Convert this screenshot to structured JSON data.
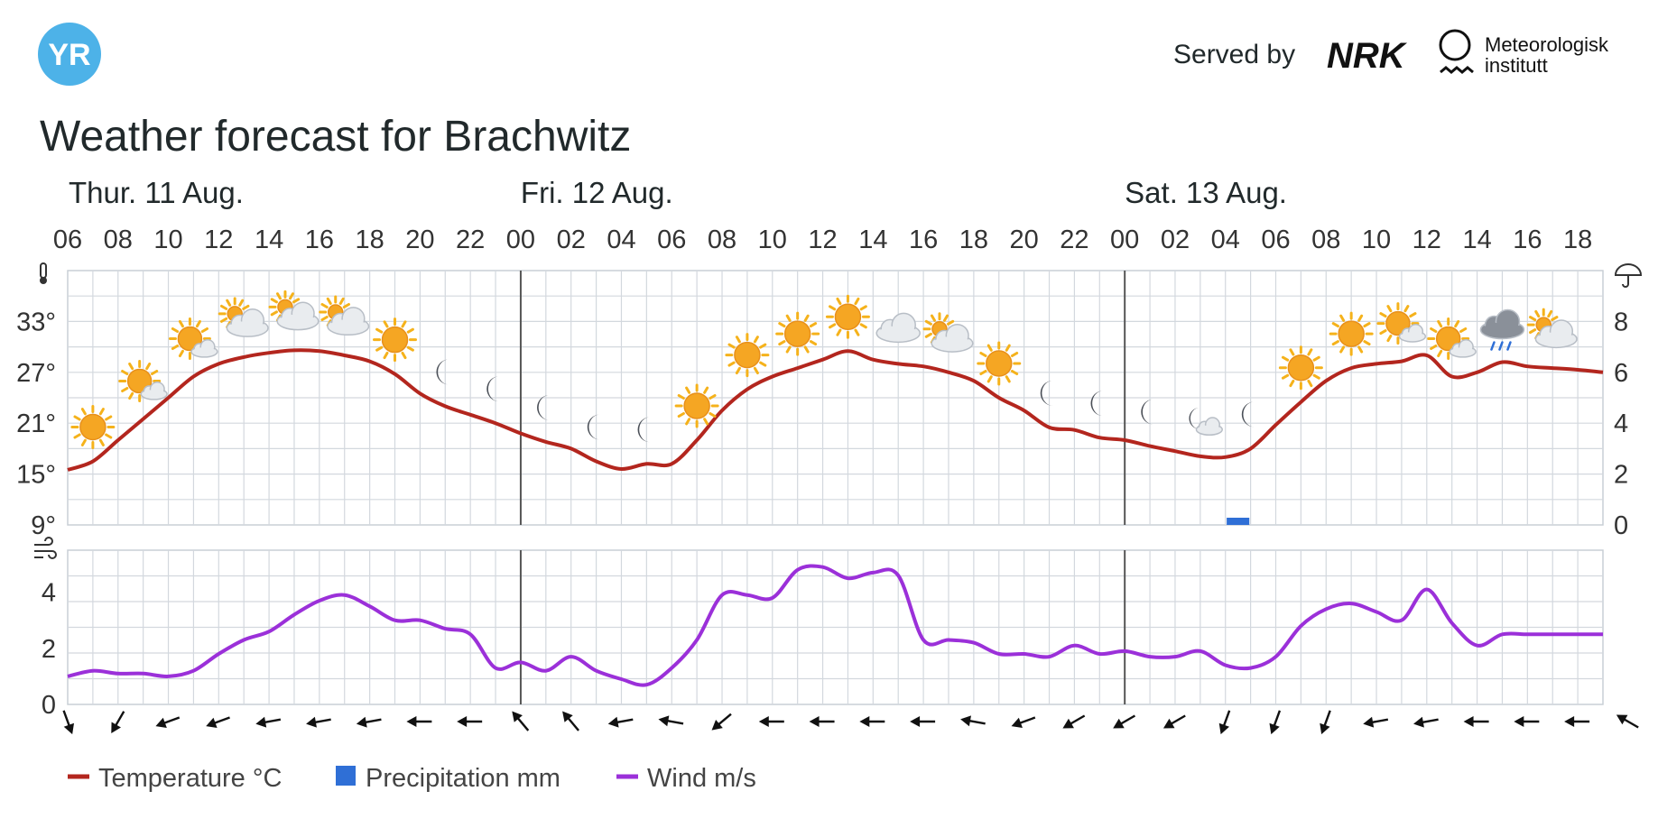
{
  "header": {
    "logo_text": "YR",
    "served_by": "Served by",
    "nrk_logo_text": "NRK",
    "met_logo_line1": "Meteorologisk",
    "met_logo_line2": "institutt"
  },
  "title": "Weather forecast for Brachwitz",
  "days": [
    {
      "label": "Thur. 11 Aug.",
      "start_hour": 0
    },
    {
      "label": "Fri. 12 Aug.",
      "start_hour": 18
    },
    {
      "label": "Sat. 13 Aug.",
      "start_hour": 42
    }
  ],
  "hour_labels": [
    "06",
    "08",
    "10",
    "12",
    "14",
    "16",
    "18",
    "20",
    "22",
    "00",
    "02",
    "04",
    "06",
    "08",
    "10",
    "12",
    "14",
    "16",
    "18",
    "20",
    "22",
    "00",
    "02",
    "04",
    "06",
    "08",
    "10",
    "12",
    "14",
    "16",
    "18"
  ],
  "legend": [
    {
      "key": "temperature",
      "label": "Temperature °C",
      "color": "#b3261e"
    },
    {
      "key": "precipitation",
      "label": "Precipitation mm",
      "color": "#2f6fd6"
    },
    {
      "key": "wind",
      "label": "Wind m/s",
      "color": "#9b30d9"
    }
  ],
  "chart_data": {
    "type": "line",
    "x_unit": "hours from Thu 11 Aug 06:00",
    "temperature_axis": {
      "ticks": [
        "9°",
        "15°",
        "21°",
        "27°",
        "33°"
      ],
      "range": [
        9,
        39
      ]
    },
    "precipitation_axis": {
      "ticks": [
        "0",
        "2",
        "4",
        "6",
        "8"
      ],
      "range": [
        0,
        10
      ]
    },
    "wind_axis": {
      "ticks": [
        "0",
        "2",
        "4"
      ],
      "range": [
        0,
        5.5
      ]
    },
    "temperature": {
      "x": [
        0,
        1,
        2,
        3,
        4,
        5,
        6,
        7,
        8,
        9,
        10,
        11,
        12,
        13,
        14,
        15,
        16,
        17,
        18,
        19,
        20,
        21,
        22,
        23,
        24,
        25,
        26,
        27,
        28,
        29,
        30,
        31,
        32,
        33,
        34,
        35,
        36,
        37,
        38,
        39,
        40,
        41,
        42,
        43,
        44,
        45,
        46,
        47,
        48,
        49,
        50,
        51,
        52,
        53,
        54,
        55,
        56,
        57,
        58,
        59,
        60,
        61
      ],
      "y": [
        15.5,
        16.5,
        19,
        21.5,
        24,
        26.5,
        28,
        28.8,
        29.3,
        29.6,
        29.5,
        29,
        28.3,
        26.8,
        24.5,
        23,
        22,
        21,
        19.8,
        18.8,
        18,
        16.5,
        15.6,
        16.2,
        16.2,
        19,
        22.5,
        25,
        26.5,
        27.5,
        28.5,
        29.5,
        28.5,
        28,
        27.7,
        27,
        26,
        24,
        22.5,
        20.5,
        20.2,
        19.3,
        19,
        18.3,
        17.7,
        17.1,
        17,
        18,
        20.8,
        23.5,
        26,
        27.5,
        28,
        28.3,
        29,
        26.5,
        27,
        28.2,
        27.7,
        27.5,
        27.3,
        27
      ]
    },
    "precipitation": {
      "x": [
        46.5
      ],
      "y": [
        0.2
      ]
    },
    "wind": {
      "x": [
        0,
        1,
        2,
        3,
        4,
        5,
        6,
        7,
        8,
        9,
        10,
        11,
        12,
        13,
        14,
        15,
        16,
        17,
        18,
        19,
        20,
        21,
        22,
        23,
        24,
        25,
        26,
        27,
        28,
        29,
        30,
        31,
        32,
        33,
        34,
        35,
        36,
        37,
        38,
        39,
        40,
        41,
        42,
        43,
        44,
        45,
        46,
        47,
        48,
        49,
        50,
        51,
        52,
        53,
        54,
        55,
        56,
        57,
        58,
        59,
        60,
        61
      ],
      "y": [
        1,
        1.2,
        1.1,
        1.1,
        1,
        1.2,
        1.8,
        2.3,
        2.6,
        3.2,
        3.7,
        3.9,
        3.5,
        3,
        3,
        2.7,
        2.5,
        1.3,
        1.5,
        1.2,
        1.7,
        1.2,
        0.9,
        0.7,
        1.3,
        2.3,
        3.9,
        3.9,
        3.8,
        4.8,
        4.9,
        4.5,
        4.7,
        4.6,
        2.3,
        2.3,
        2.2,
        1.8,
        1.8,
        1.7,
        2.1,
        1.8,
        1.9,
        1.7,
        1.7,
        1.9,
        1.4,
        1.3,
        1.7,
        2.8,
        3.4,
        3.6,
        3.3,
        3,
        4.1,
        2.9,
        2.1,
        2.5,
        2.5,
        2.5,
        2.5,
        2.5
      ]
    },
    "weather_icons": [
      {
        "x": 1,
        "type": "sun"
      },
      {
        "x": 3,
        "type": "sun-cloud"
      },
      {
        "x": 5,
        "type": "sun-cloud"
      },
      {
        "x": 7,
        "type": "cloud-sun"
      },
      {
        "x": 9,
        "type": "cloud-sun"
      },
      {
        "x": 11,
        "type": "cloud-sun"
      },
      {
        "x": 13,
        "type": "sun"
      },
      {
        "x": 15,
        "type": "moon"
      },
      {
        "x": 17,
        "type": "moon"
      },
      {
        "x": 19,
        "type": "moon"
      },
      {
        "x": 21,
        "type": "moon"
      },
      {
        "x": 23,
        "type": "moon"
      },
      {
        "x": 25,
        "type": "sun"
      },
      {
        "x": 27,
        "type": "sun"
      },
      {
        "x": 29,
        "type": "sun"
      },
      {
        "x": 31,
        "type": "sun"
      },
      {
        "x": 33,
        "type": "cloud"
      },
      {
        "x": 35,
        "type": "cloud-sun"
      },
      {
        "x": 37,
        "type": "sun"
      },
      {
        "x": 39,
        "type": "moon"
      },
      {
        "x": 41,
        "type": "moon"
      },
      {
        "x": 43,
        "type": "moon"
      },
      {
        "x": 45,
        "type": "moon-cloud"
      },
      {
        "x": 47,
        "type": "moon"
      },
      {
        "x": 49,
        "type": "sun"
      },
      {
        "x": 51,
        "type": "sun"
      },
      {
        "x": 53,
        "type": "sun-cloud"
      },
      {
        "x": 55,
        "type": "sun-cloud"
      },
      {
        "x": 57,
        "type": "rain-cloud"
      },
      {
        "x": 59,
        "type": "cloud-sun"
      }
    ],
    "wind_direction_deg": [
      340,
      30,
      70,
      70,
      80,
      80,
      80,
      90,
      90,
      140,
      140,
      80,
      100,
      50,
      90,
      90,
      90,
      90,
      100,
      70,
      60,
      60,
      60,
      20,
      20,
      20,
      80,
      80,
      90,
      90,
      90,
      120
    ],
    "grid": true,
    "day_dividers_at": [
      18,
      42
    ]
  }
}
